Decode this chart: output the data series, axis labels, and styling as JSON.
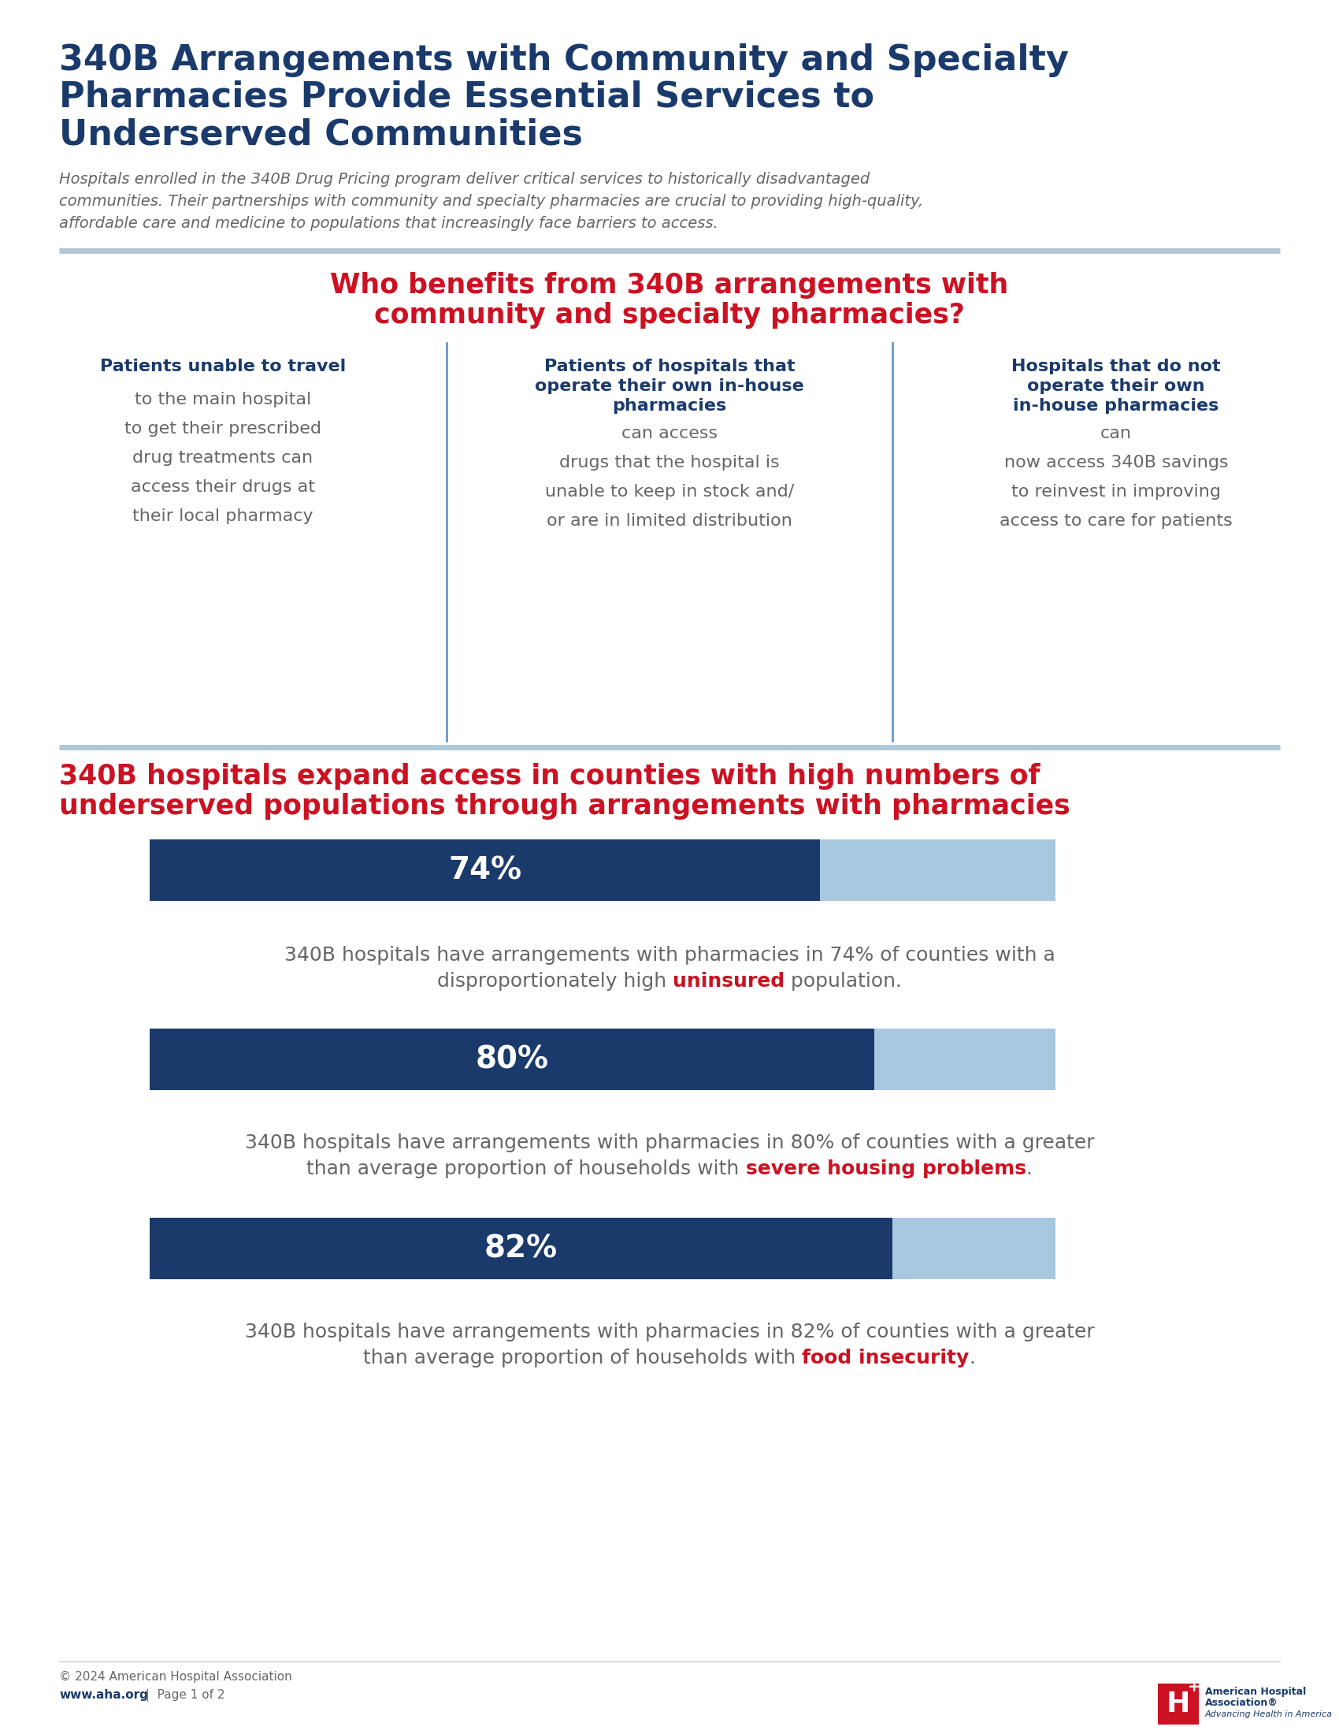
{
  "title_line1": "340B Arrangements with Community and Specialty",
  "title_line2": "Pharmacies Provide Essential Services to",
  "title_line3": "Underserved Communities",
  "subtitle_line1": "Hospitals enrolled in the 340B Drug Pricing program deliver critical services to historically disadvantaged",
  "subtitle_line2": "communities. Their partnerships with community and specialty pharmacies are crucial to providing high-quality,",
  "subtitle_line3": "affordable care and medicine to populations that increasingly face barriers to access.",
  "section1_title_line1": "Who benefits from 340B arrangements with",
  "section1_title_line2": "community and specialty pharmacies?",
  "col1_bold": "Patients unable to travel",
  "col1_lines": [
    "to the main hospital",
    "to get their prescribed",
    "drug treatments can",
    "access their drugs at",
    "their local pharmacy"
  ],
  "col2_bold1": "Patients of hospitals that",
  "col2_bold2": "operate their own in-house",
  "col2_bold3": "pharmacies",
  "col2_lines": [
    "can access",
    "drugs that the hospital is",
    "unable to keep in stock and/",
    "or are in limited distribution"
  ],
  "col3_bold1": "Hospitals that do not",
  "col3_bold2": "operate their own",
  "col3_bold3": "in-house pharmacies",
  "col3_lines": [
    "can",
    "now access 340B savings",
    "to reinvest in improving",
    "access to care for patients"
  ],
  "section2_title_line1": "340B hospitals expand access in counties with high numbers of",
  "section2_title_line2": "underserved populations through arrangements with pharmacies",
  "bar1_pct": 74,
  "bar1_label": "74%",
  "bar1_desc1": "340B hospitals have arrangements with pharmacies in 74% of counties with a",
  "bar1_desc2_pre": "disproportionately high ",
  "bar1_desc2_highlight": "uninsured",
  "bar1_desc2_post": " population.",
  "bar2_pct": 80,
  "bar2_label": "80%",
  "bar2_desc1": "340B hospitals have arrangements with pharmacies in 80% of counties with a greater",
  "bar2_desc2_pre": "than average proportion of households with ",
  "bar2_desc2_highlight": "severe housing problems",
  "bar2_desc2_post": ".",
  "bar3_pct": 82,
  "bar3_label": "82%",
  "bar3_desc1": "340B hospitals have arrangements with pharmacies in 82% of counties with a greater",
  "bar3_desc2_pre": "than average proportion of households with ",
  "bar3_desc2_highlight": "food insecurity",
  "bar3_desc2_post": ".",
  "footer_copy": "© 2024 American Hospital Association",
  "footer_url": "www.aha.org",
  "footer_page": "  |  Page 1 of 2",
  "dark_blue": "#1a3a6b",
  "light_blue_bar": "#a8c8e0",
  "red": "#cc1122",
  "gray_text": "#666666",
  "divider_color": "#b0c8d8",
  "bg_color": "#ffffff",
  "col_div_color": "#6699cc"
}
